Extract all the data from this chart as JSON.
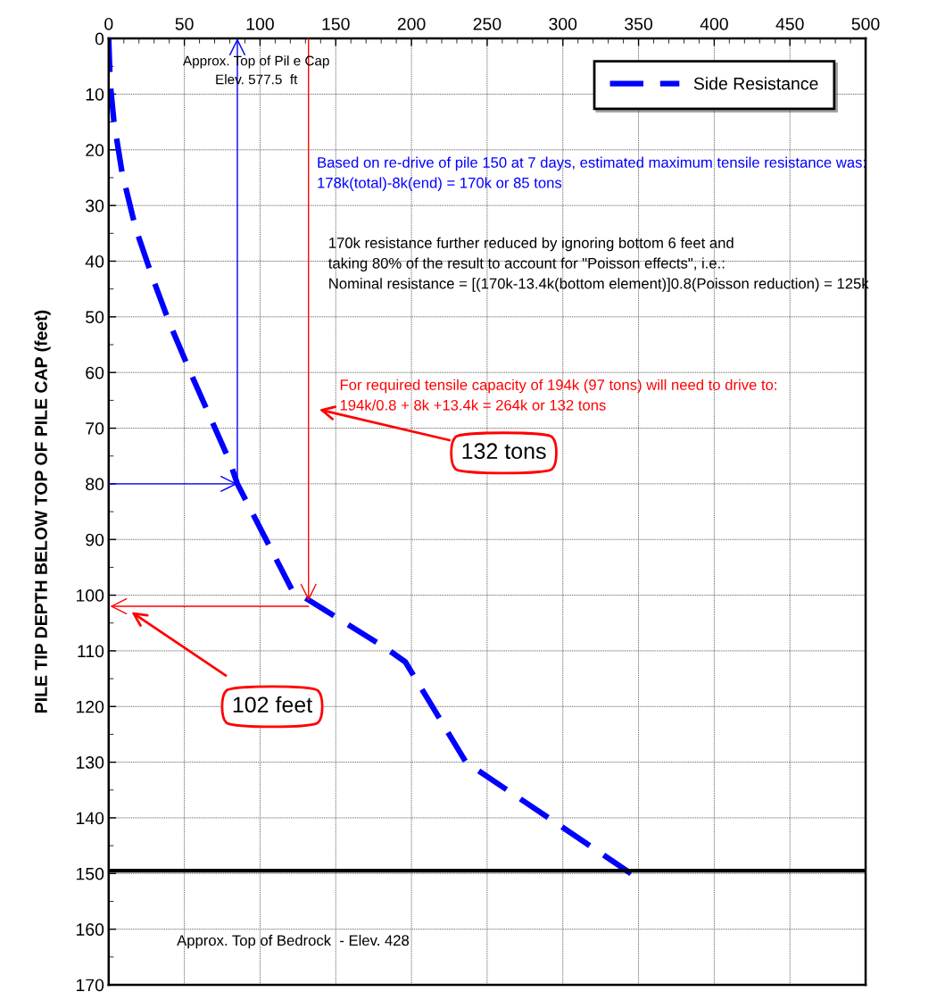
{
  "chart_data": {
    "type": "line",
    "ylabel": "PILE TIP DEPTH BELOW TOP OF PILE CAP (feet)",
    "xlim": [
      0,
      500
    ],
    "xticks": [
      0,
      50,
      100,
      150,
      200,
      250,
      300,
      350,
      400,
      450,
      500
    ],
    "ylim": [
      170,
      0
    ],
    "yticks": [
      0,
      10,
      20,
      30,
      40,
      50,
      60,
      70,
      80,
      90,
      100,
      110,
      120,
      130,
      140,
      150,
      160,
      170
    ],
    "grid": true,
    "legend": "top right",
    "series": [
      {
        "name": "Side Resistance",
        "color": "#0000ff",
        "line_style": "dashed",
        "x": [
          0,
          1,
          3.5,
          8.8,
          17.7,
          29,
          40,
          54,
          67,
          80,
          85,
          121,
          127,
          183,
          196,
          236,
          345
        ],
        "values": [
          0,
          8,
          15,
          24,
          34,
          43,
          51,
          60,
          68,
          76,
          80,
          99,
          100,
          109.5,
          112,
          130,
          150
        ]
      }
    ],
    "ref_lines": [
      {
        "axis": "y",
        "value": 149.5,
        "color": "#000000"
      }
    ],
    "annotations": [
      "Approx. Top of Pil e Cap\nElev. 577.5  ft",
      "Based on re-drive of pile 150 at 7 days, estimated maximum tensile resistance was:\n178k(total)-8k(end) = 170k or 85 tons",
      "170k resistance further reduced by ignoring bottom 6 feet and\ntaking 80% of the result to account for \"Poisson effects\", i.e.:\nNominal resistance = [(170k-13.4k(bottom element)]0.8(Poisson reduction) = 125k",
      "For required tensile capacity of 194k (97 tons) will need to drive to:\n194k/0.8 + 8k +13.4k = 264k or 132 tons",
      "Approx. Top of Bedrock  - Elev. 428",
      "132 tons",
      "102 feet"
    ]
  }
}
